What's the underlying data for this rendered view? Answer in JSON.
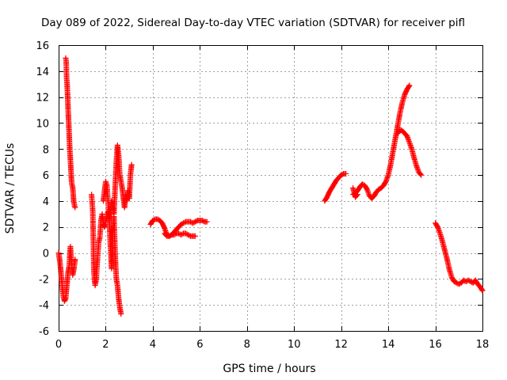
{
  "chart_data": {
    "type": "scatter",
    "title": "Day 089 of 2022, Sidereal Day-to-day VTEC variation (SDTVAR) for receiver pifl",
    "xlabel": "GPS time / hours",
    "ylabel": "SDTVAR / TECUs",
    "xlim": [
      0,
      18
    ],
    "ylim": [
      -6,
      16
    ],
    "xticks": [
      0,
      2,
      4,
      6,
      8,
      10,
      12,
      14,
      16,
      18
    ],
    "yticks": [
      -6,
      -4,
      -2,
      0,
      2,
      4,
      6,
      8,
      10,
      12,
      14,
      16
    ],
    "grid": true,
    "marker": "+",
    "color": "#ff0000",
    "series": [
      {
        "name": "s1",
        "x": [
          0.0,
          0.05,
          0.1,
          0.15,
          0.2,
          0.25,
          0.3,
          0.35,
          0.4
        ],
        "y": [
          0.0,
          -0.6,
          -1.5,
          -2.5,
          -3.4,
          -3.7,
          -3.5,
          -2.5,
          -1.5
        ]
      },
      {
        "name": "s2",
        "x": [
          0.3,
          0.32,
          0.34,
          0.36,
          0.38,
          0.4,
          0.42,
          0.44,
          0.46,
          0.48,
          0.5,
          0.52,
          0.54,
          0.56,
          0.58,
          0.6,
          0.62,
          0.64,
          0.66,
          0.68,
          0.7
        ],
        "y": [
          15.0,
          14.8,
          13.5,
          13.0,
          12.2,
          11.2,
          10.3,
          9.5,
          8.6,
          7.8,
          7.2,
          6.5,
          5.8,
          5.3,
          5.2,
          5.0,
          4.5,
          4.0,
          3.8,
          3.6,
          3.5
        ]
      },
      {
        "name": "s3",
        "x": [
          0.4,
          0.45,
          0.5,
          0.55,
          0.6,
          0.65,
          0.7
        ],
        "y": [
          -1.5,
          -1.0,
          0.5,
          -0.8,
          -1.7,
          -1.2,
          -0.5
        ]
      },
      {
        "name": "s4",
        "x": [
          1.4,
          1.45,
          1.5,
          1.55,
          1.6,
          1.65,
          1.7,
          1.75,
          1.8,
          1.85,
          1.9,
          1.95,
          2.0,
          2.05,
          2.1,
          2.15,
          2.2,
          2.25,
          2.3,
          2.35,
          2.4,
          2.45,
          2.5,
          2.55,
          2.6,
          2.65
        ],
        "y": [
          4.5,
          3.2,
          -1.5,
          -2.5,
          -2.0,
          -0.5,
          0.8,
          1.2,
          2.5,
          3.0,
          2.2,
          2.0,
          2.5,
          2.8,
          3.2,
          2.5,
          0.5,
          -1.2,
          1.5,
          2.8,
          0.0,
          -2.0,
          -2.5,
          -3.5,
          -4.2,
          -4.7
        ]
      },
      {
        "name": "s5",
        "x": [
          1.9,
          1.95,
          2.0,
          2.05,
          2.1,
          2.15,
          2.2,
          2.25,
          2.3,
          2.35,
          2.4,
          2.45,
          2.5,
          2.55,
          2.6,
          2.65,
          2.7,
          2.75,
          2.8,
          2.85,
          2.9,
          2.95,
          3.0,
          3.05,
          3.1
        ],
        "y": [
          4.0,
          4.8,
          5.5,
          5.2,
          4.0,
          2.5,
          3.0,
          4.0,
          3.5,
          3.0,
          5.0,
          7.0,
          8.3,
          7.5,
          6.0,
          5.5,
          5.0,
          4.2,
          3.5,
          4.5,
          4.0,
          4.8,
          4.2,
          6.0,
          6.8
        ]
      },
      {
        "name": "s6",
        "x": [
          3.9,
          4.0,
          4.1,
          4.2,
          4.3,
          4.4,
          4.5,
          4.6,
          4.7,
          4.8,
          4.9,
          5.0,
          5.1,
          5.2,
          5.3,
          5.4,
          5.5,
          5.6,
          5.7,
          5.8,
          5.9,
          6.0,
          6.1,
          6.2,
          6.3
        ],
        "y": [
          2.2,
          2.5,
          2.6,
          2.6,
          2.5,
          2.3,
          1.9,
          1.4,
          1.3,
          1.4,
          1.6,
          1.8,
          2.0,
          2.2,
          2.3,
          2.4,
          2.4,
          2.4,
          2.3,
          2.4,
          2.5,
          2.5,
          2.5,
          2.4,
          2.4
        ]
      },
      {
        "name": "s7",
        "x": [
          4.5,
          4.6,
          4.7,
          4.8,
          4.9,
          5.0,
          5.1,
          5.2,
          5.3,
          5.4,
          5.5,
          5.6,
          5.7,
          5.8
        ],
        "y": [
          1.5,
          1.3,
          1.3,
          1.4,
          1.4,
          1.5,
          1.5,
          1.4,
          1.5,
          1.5,
          1.4,
          1.3,
          1.3,
          1.3
        ]
      },
      {
        "name": "s8",
        "x": [
          11.3,
          11.4,
          11.5,
          11.6,
          11.7,
          11.8,
          11.9,
          12.0,
          12.1,
          12.2
        ],
        "y": [
          4.0,
          4.3,
          4.7,
          5.0,
          5.3,
          5.6,
          5.8,
          6.0,
          6.1,
          6.1
        ]
      },
      {
        "name": "s9",
        "x": [
          12.5,
          12.6,
          12.7,
          12.8,
          12.9,
          13.0,
          13.1,
          13.2,
          13.3,
          13.4,
          13.5,
          13.6,
          13.7,
          13.8,
          13.9,
          14.0,
          14.1,
          14.2,
          14.3,
          14.4,
          14.5,
          14.6,
          14.7,
          14.8,
          14.9
        ],
        "y": [
          4.5,
          4.6,
          4.8,
          5.1,
          5.3,
          5.2,
          4.9,
          4.4,
          4.2,
          4.4,
          4.7,
          4.9,
          5.0,
          5.2,
          5.5,
          6.0,
          6.8,
          7.8,
          8.8,
          9.8,
          10.8,
          11.6,
          12.2,
          12.6,
          12.9
        ]
      },
      {
        "name": "s10",
        "x": [
          12.5,
          12.6,
          12.7
        ],
        "y": [
          5.0,
          4.3,
          4.5
        ]
      },
      {
        "name": "s11",
        "x": [
          14.4,
          14.5,
          14.6,
          14.7,
          14.8,
          14.9,
          15.0,
          15.1,
          15.2,
          15.3,
          15.4
        ],
        "y": [
          9.2,
          9.5,
          9.4,
          9.2,
          9.0,
          8.5,
          8.0,
          7.3,
          6.7,
          6.2,
          6.0
        ]
      },
      {
        "name": "s12",
        "x": [
          16.0,
          16.1,
          16.2,
          16.3,
          16.4,
          16.5,
          16.6,
          16.7,
          16.8,
          16.9,
          17.0,
          17.1,
          17.2,
          17.3,
          17.4,
          17.5,
          17.6,
          17.7,
          17.8,
          17.9,
          18.0
        ],
        "y": [
          2.3,
          2.0,
          1.5,
          0.9,
          0.2,
          -0.5,
          -1.3,
          -1.9,
          -2.2,
          -2.3,
          -2.4,
          -2.3,
          -2.1,
          -2.2,
          -2.1,
          -2.2,
          -2.3,
          -2.1,
          -2.4,
          -2.6,
          -2.9
        ]
      }
    ]
  }
}
